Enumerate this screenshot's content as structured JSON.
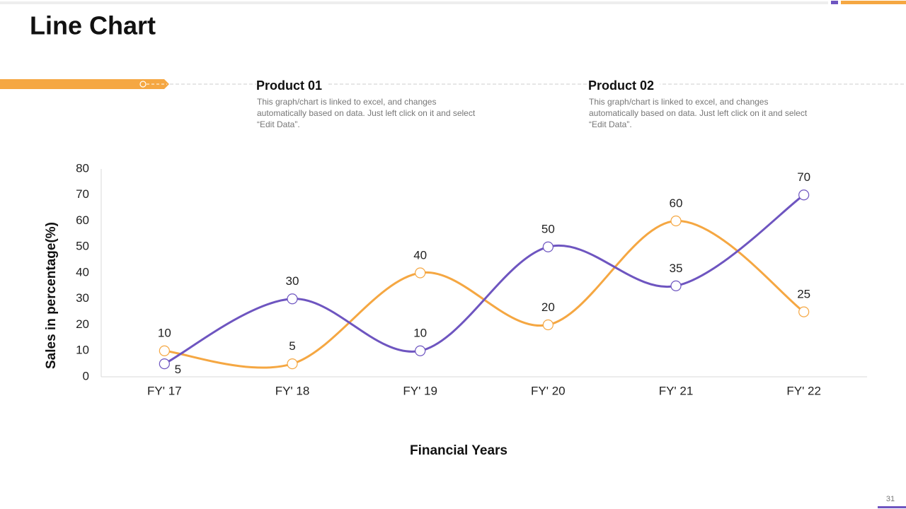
{
  "title": "Line Chart",
  "page_number": "31",
  "products": [
    {
      "description": "This graph/chart is linked to excel, and changes automatically based on data. Just left click on it and select “Edit Data”."
    },
    {
      "description": "This graph/chart is linked to excel, and changes automatically based on data. Just left click on it and select “Edit Data”."
    }
  ],
  "chart_data": {
    "type": "line",
    "x_label": "Financial Years",
    "y_label": "Sales in percentage(%)",
    "categories": [
      "FY' 17",
      "FY' 18",
      "FY' 19",
      "FY' 20",
      "FY' 21",
      "FY' 22"
    ],
    "series": [
      {
        "name": "Product 01",
        "color": "#f5a742",
        "values": [
          10,
          5,
          40,
          20,
          60,
          25
        ]
      },
      {
        "name": "Product 02",
        "color": "#6e55c0",
        "values": [
          5,
          30,
          10,
          50,
          35,
          70
        ]
      }
    ],
    "ylim": [
      0,
      80
    ],
    "yticks": [
      0,
      10,
      20,
      30,
      40,
      50,
      60,
      70,
      80
    ],
    "smooth": true,
    "grid": false
  }
}
